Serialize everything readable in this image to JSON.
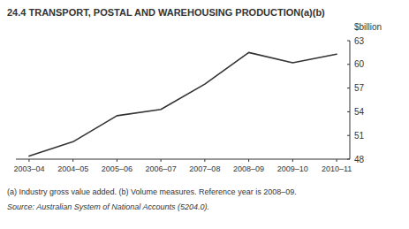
{
  "chart_data": {
    "type": "line",
    "title": "24.4   TRANSPORT, POSTAL AND WAREHOUSING PRODUCTION(a)(b)",
    "ylabel": "$billion",
    "categories": [
      "2003–04",
      "2004–05",
      "2005–06",
      "2006–07",
      "2007–08",
      "2008–09",
      "2009–10",
      "2010–11"
    ],
    "values": [
      48.4,
      50.2,
      53.5,
      54.3,
      57.5,
      61.5,
      60.2,
      61.3
    ],
    "color": "#333333",
    "ylim": [
      48,
      63
    ],
    "yticks": [
      48,
      51,
      54,
      57,
      60,
      63
    ],
    "grid": false,
    "annotations": [
      "(a) Industry gross value added. (b) Volume measures. Reference year is 2008–09.",
      "Source: Australian System of National Accounts (5204.0)."
    ]
  }
}
